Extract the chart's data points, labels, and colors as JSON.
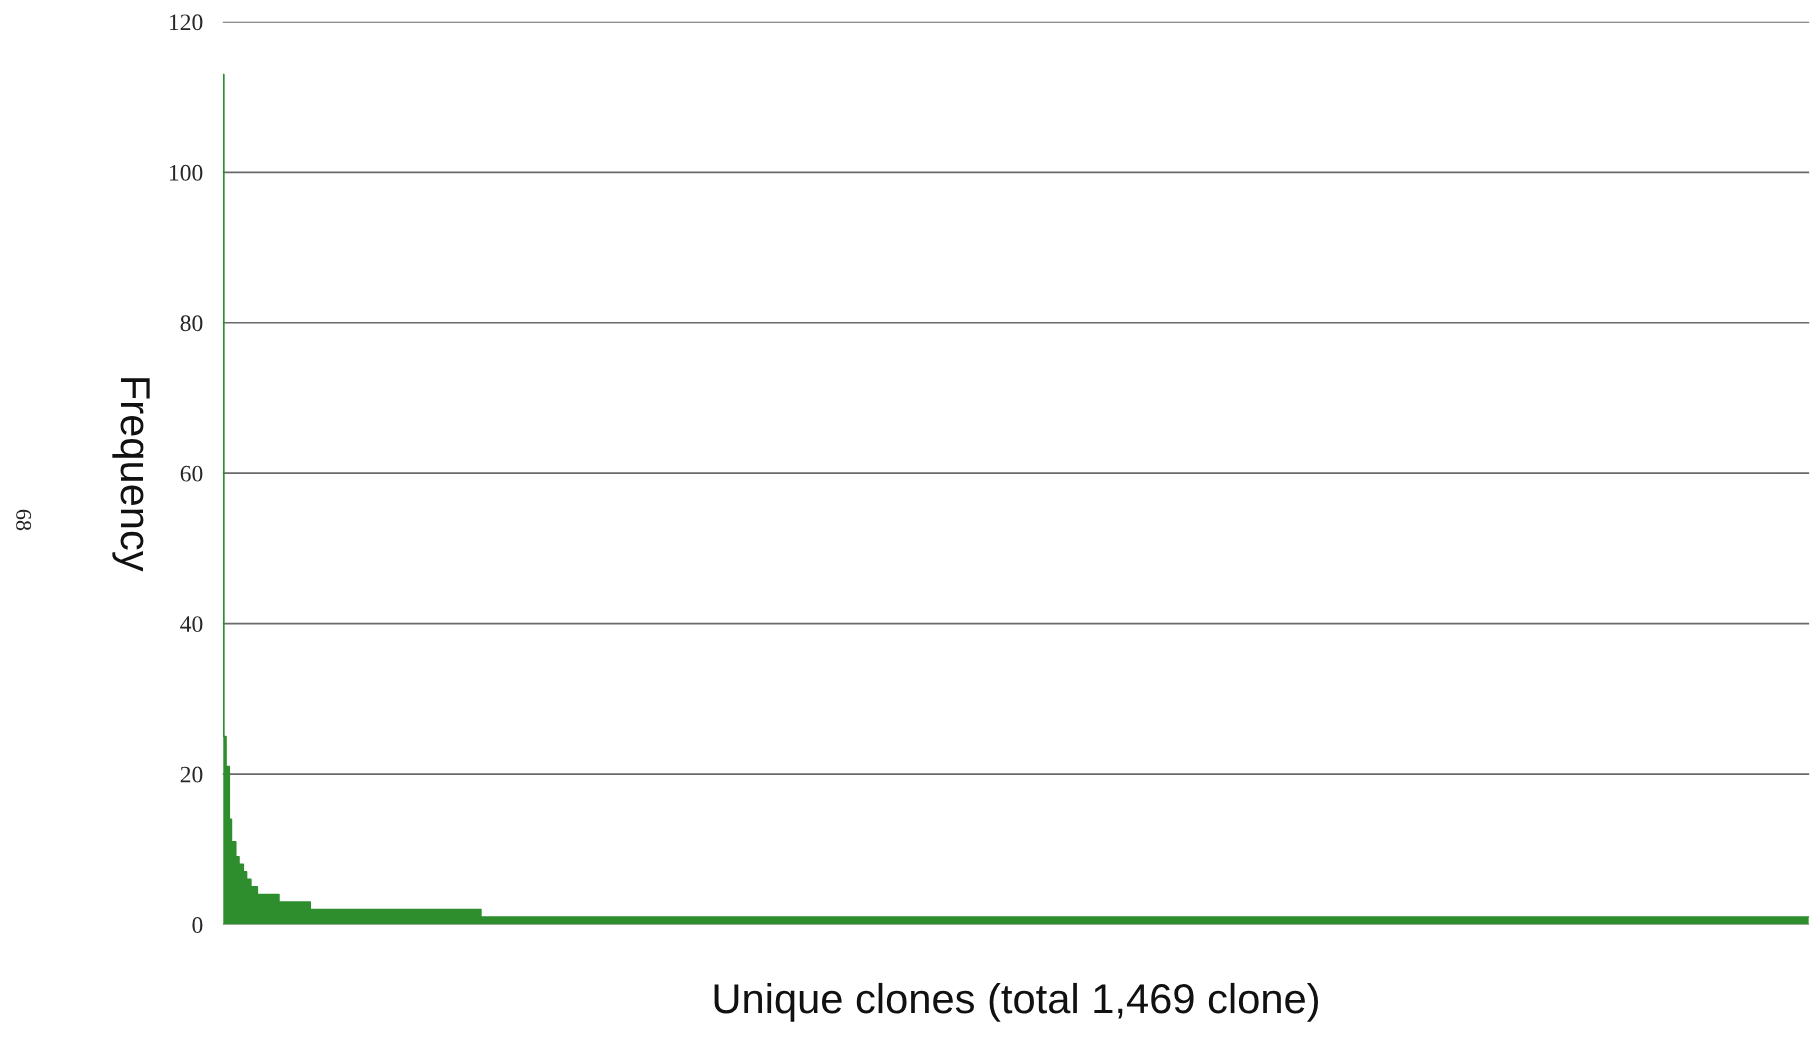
{
  "chart_data": {
    "type": "area",
    "xlabel": "Unique clones (total 1,469 clone)",
    "ylabel": "Frequency",
    "annotations": [
      "68"
    ],
    "color": "#2e8e2e",
    "ylim": [
      0,
      120
    ],
    "yticks": [
      0,
      20,
      40,
      60,
      80,
      100,
      120
    ],
    "grid": "y",
    "tick_labels": "y",
    "categories": [
      null,
      null,
      null,
      null,
      null,
      null,
      null,
      null,
      null,
      null,
      null,
      null,
      null,
      null,
      null,
      null,
      null,
      null,
      null,
      null,
      null,
      null,
      null,
      null,
      null,
      null,
      null,
      null,
      null,
      null,
      null,
      null,
      null,
      null,
      null,
      null,
      null,
      null,
      null,
      null,
      null,
      null,
      null,
      null,
      null,
      null,
      null,
      null,
      null,
      null,
      null,
      null,
      null,
      null,
      null,
      null,
      null,
      null,
      null,
      null,
      null,
      null,
      null,
      null,
      null,
      null,
      null,
      null,
      null,
      null,
      null,
      null,
      null,
      null,
      null,
      null,
      null,
      null,
      null,
      null,
      null,
      null,
      null,
      null,
      null,
      null,
      null,
      null,
      null,
      null,
      null,
      null,
      null,
      null,
      null,
      null,
      null,
      null,
      null,
      null,
      null,
      null,
      null,
      null,
      null,
      null,
      null,
      null,
      null,
      null,
      null,
      null,
      null,
      null,
      null,
      null,
      null,
      null,
      null,
      null,
      null,
      null,
      null,
      null,
      null,
      null,
      null,
      null,
      null,
      null,
      null,
      null,
      null,
      null,
      null,
      null,
      null,
      null,
      null,
      null,
      null,
      null,
      null,
      null,
      null,
      null,
      null,
      null,
      null,
      null,
      null,
      null,
      null,
      null,
      null,
      null,
      null,
      null,
      null,
      null,
      null,
      null,
      null,
      null,
      null,
      null,
      null,
      null,
      null,
      null,
      null,
      null,
      null,
      null,
      null,
      null,
      null,
      null,
      null,
      null,
      null,
      null,
      null,
      null,
      null,
      null,
      null,
      null,
      null,
      null,
      null,
      null,
      null,
      null,
      null,
      null,
      null,
      null,
      null,
      null,
      null,
      null,
      null,
      null,
      null,
      null,
      null,
      null,
      null,
      null,
      null,
      null,
      null,
      null,
      null,
      null,
      null,
      null,
      null,
      null,
      null,
      null,
      null,
      null,
      null,
      null,
      null,
      null,
      null,
      null,
      null,
      null,
      null,
      null,
      null,
      null,
      null,
      null,
      null,
      null,
      null,
      null,
      null,
      null,
      null,
      null,
      null,
      null,
      null,
      null,
      null,
      null,
      null,
      null,
      null,
      null,
      null,
      null,
      null,
      null,
      null,
      null,
      null,
      null,
      null,
      null,
      null,
      null,
      null,
      null,
      null,
      null,
      null,
      null,
      null,
      null,
      null,
      null,
      null,
      null,
      null,
      null,
      null,
      null,
      null,
      null,
      null,
      null,
      null,
      null,
      null,
      null,
      null,
      null,
      null,
      null,
      null,
      null,
      null,
      null,
      null,
      null,
      null,
      null,
      null,
      null,
      null,
      null,
      null,
      null,
      null,
      null,
      null,
      null,
      null,
      null,
      null,
      null,
      null,
      null,
      null,
      null,
      null,
      null,
      null,
      null,
      null,
      null,
      null,
      null,
      null,
      null,
      null,
      null,
      null,
      null,
      null,
      null,
      null,
      null,
      null,
      null,
      null,
      null,
      null,
      null,
      null,
      null,
      null,
      null,
      null,
      null,
      null,
      null,
      null,
      null,
      null,
      null,
      null,
      null,
      null,
      null,
      null,
      null,
      null,
      null,
      null,
      null,
      null,
      null,
      null,
      null,
      null,
      null,
      null,
      null,
      null,
      null,
      null,
      null,
      null,
      null,
      null,
      null,
      null,
      null,
      null,
      null,
      null,
      null,
      null,
      null,
      null,
      null,
      null,
      null,
      null,
      null,
      null,
      null,
      null,
      null,
      null,
      null,
      null,
      null,
      null,
      null,
      null,
      null,
      null,
      null,
      null,
      null,
      null,
      null,
      null,
      null,
      null,
      null,
      null,
      null,
      null,
      null,
      null,
      null,
      null,
      null,
      null,
      null,
      null,
      null,
      null,
      null,
      null,
      null,
      null,
      null,
      null,
      null,
      null,
      null,
      null,
      null,
      null,
      null,
      null,
      null,
      null,
      null,
      null,
      null,
      null,
      null,
      null,
      null,
      null,
      null,
      null,
      null,
      null,
      null,
      null,
      null,
      null,
      null,
      null,
      null,
      null,
      null,
      null,
      null,
      null,
      null,
      null,
      null,
      null,
      null,
      null,
      null,
      null,
      null,
      null,
      null,
      null,
      null,
      null,
      null,
      null,
      null,
      null,
      null,
      null,
      null,
      null,
      null,
      null,
      null,
      null,
      null,
      null,
      null,
      null,
      null,
      null,
      null,
      null,
      null,
      null,
      null,
      null,
      null,
      null,
      null,
      null,
      null,
      null,
      null,
      null,
      null,
      null,
      null,
      null,
      null,
      null,
      null,
      null,
      null,
      null,
      null,
      null,
      null,
      null,
      null,
      null,
      null,
      null,
      null,
      null,
      null,
      null,
      null,
      null,
      null,
      null,
      null,
      null,
      null,
      null,
      null,
      null,
      null,
      null,
      null,
      null,
      null,
      null,
      null,
      null,
      null,
      null,
      null,
      null,
      null,
      null,
      null,
      null,
      null,
      null,
      null,
      null,
      null,
      null,
      null,
      null,
      null,
      null,
      null,
      null,
      null,
      null,
      null,
      null,
      null,
      null,
      null,
      null,
      null,
      null,
      null,
      null,
      null,
      null,
      null,
      null,
      null,
      null,
      null,
      null,
      null,
      null,
      null,
      null,
      null,
      null,
      null,
      null,
      null,
      null,
      null,
      null,
      null,
      null,
      null,
      null,
      null,
      null,
      null,
      null,
      null,
      null,
      null,
      null,
      null,
      null,
      null,
      null,
      null,
      null,
      null,
      null,
      null,
      null,
      null,
      null,
      null,
      null,
      null,
      null,
      null,
      null,
      null,
      null,
      null,
      null,
      null,
      null,
      null,
      null,
      null,
      null,
      null,
      null,
      null,
      null,
      null,
      null,
      null,
      null,
      null,
      null,
      null,
      null,
      null,
      null,
      null,
      null,
      null,
      null,
      null,
      null,
      null,
      null,
      null,
      null,
      null,
      null,
      null,
      null,
      null,
      null,
      null,
      null,
      null,
      null,
      null,
      null,
      null,
      null,
      null,
      null,
      null,
      null,
      null,
      null,
      null,
      null,
      null,
      null,
      null,
      null,
      null,
      null,
      null,
      null,
      null,
      null,
      null,
      null,
      null,
      null,
      null,
      null,
      null,
      null,
      null,
      null,
      null,
      null,
      null,
      null,
      null,
      null,
      null,
      null,
      null,
      null,
      null,
      null,
      null,
      null,
      null,
      null,
      null,
      null,
      null,
      null,
      null,
      null,
      null,
      null,
      null,
      null,
      null,
      null,
      null,
      null,
      null,
      null,
      null,
      null,
      null,
      null,
      null,
      null,
      null,
      null,
      null,
      null,
      null,
      null,
      null,
      null,
      null,
      null,
      null,
      null,
      null,
      null,
      null,
      null,
      null,
      null,
      null,
      null,
      null,
      null,
      null,
      null,
      null,
      null,
      null,
      null,
      null,
      null,
      null,
      null,
      null,
      null,
      null,
      null,
      null,
      null,
      null,
      null,
      null,
      null,
      null,
      null,
      null,
      null,
      null,
      null,
      null,
      null,
      null,
      null,
      null,
      null,
      null,
      null,
      null,
      null,
      null,
      null,
      null,
      null,
      null,
      null,
      null,
      null,
      null,
      null,
      null,
      null,
      null,
      null,
      null,
      null,
      null,
      null,
      null,
      null,
      null,
      null,
      null,
      null,
      null,
      null,
      null,
      null,
      null,
      null,
      null,
      null,
      null,
      null,
      null,
      null,
      null,
      null,
      null,
      null,
      null,
      null,
      null,
      null,
      null,
      null,
      null,
      null,
      null,
      null,
      null,
      null,
      null,
      null,
      null,
      null,
      null,
      null,
      null,
      null,
      null,
      null,
      null,
      null,
      null,
      null,
      null,
      null,
      null,
      null,
      null,
      null,
      null,
      null,
      null,
      null,
      null,
      null,
      null,
      null,
      null,
      null,
      null,
      null,
      null,
      null,
      null,
      null,
      null,
      null,
      null,
      null,
      null,
      null,
      null,
      null,
      null,
      null,
      null,
      null,
      null,
      null,
      null,
      null,
      null,
      null,
      null,
      null,
      null,
      null,
      null,
      null,
      null,
      null,
      null,
      null,
      null,
      null,
      null,
      null,
      null,
      null,
      null,
      null,
      null,
      null,
      null,
      null,
      null,
      null,
      null,
      null,
      null,
      null,
      null,
      null,
      null,
      null,
      null,
      null,
      null,
      null,
      null,
      null,
      null,
      null,
      null,
      null,
      null,
      null,
      null,
      null,
      null,
      null,
      null,
      null,
      null,
      null,
      null,
      null,
      null,
      null,
      null,
      null,
      null,
      null,
      null,
      null,
      null,
      null,
      null,
      null,
      null,
      null,
      null,
      null,
      null,
      null,
      null,
      null,
      null,
      null,
      null,
      null,
      null,
      null,
      null,
      null,
      null,
      null,
      null,
      null,
      null,
      null,
      null,
      null,
      null,
      null,
      null,
      null,
      null,
      null,
      null,
      null,
      null,
      null,
      null,
      null,
      null,
      null,
      null,
      null,
      null,
      null,
      null,
      null,
      null,
      null,
      null,
      null,
      null,
      null,
      null,
      null,
      null,
      null,
      null,
      null,
      null,
      null,
      null,
      null,
      null,
      null,
      null,
      null,
      null,
      null,
      null,
      null,
      null,
      null,
      null,
      null,
      null,
      null,
      null,
      null,
      null,
      null,
      null,
      null,
      null,
      null,
      null,
      null,
      null,
      null,
      null,
      null,
      null,
      null,
      null,
      null,
      null,
      null,
      null,
      null,
      null,
      null,
      null,
      null,
      null,
      null,
      null,
      null,
      null,
      null,
      null,
      null,
      null,
      null,
      null,
      null,
      null,
      null,
      null,
      null,
      null,
      null,
      null,
      null,
      null,
      null,
      null,
      null,
      null,
      null,
      null,
      null,
      null,
      null,
      null,
      null,
      null,
      null,
      null,
      null,
      null,
      null,
      null,
      null,
      null,
      null,
      null,
      null,
      null,
      null,
      null,
      null,
      null,
      null,
      null,
      null,
      null,
      null,
      null,
      null,
      null,
      null,
      null,
      null,
      null,
      null,
      null,
      null,
      null,
      null,
      null,
      null,
      null,
      null,
      null,
      null,
      null,
      null,
      null,
      null,
      null,
      null,
      null,
      null,
      null,
      null,
      null,
      null,
      null,
      null,
      null,
      null,
      null,
      null,
      null,
      null,
      null,
      null,
      null,
      null,
      null,
      null,
      null,
      null,
      null,
      null,
      null,
      null,
      null,
      null,
      null,
      null,
      null,
      null,
      null,
      null,
      null,
      null,
      null,
      null,
      null,
      null,
      null,
      null,
      null,
      null,
      null,
      null,
      null,
      null,
      null,
      null,
      null,
      null,
      null,
      null,
      null,
      null,
      null,
      null,
      null,
      null,
      null,
      null,
      null,
      null,
      null,
      null,
      null,
      null,
      null,
      null,
      null,
      null,
      null,
      null,
      null,
      null,
      null,
      null,
      null,
      null,
      null,
      null,
      null,
      null,
      null,
      null,
      null,
      null,
      null,
      null,
      null,
      null,
      null,
      null,
      null,
      null,
      null,
      null,
      null,
      null,
      null,
      null,
      null,
      null,
      null,
      null,
      null,
      null,
      null,
      null,
      null,
      null,
      null,
      null,
      null,
      null,
      null,
      null,
      null,
      null,
      null,
      null,
      null,
      null,
      null,
      null,
      null,
      null,
      null,
      null,
      null,
      null,
      null,
      null,
      null,
      null,
      null,
      null,
      null,
      null,
      null,
      null,
      null,
      null,
      null,
      null,
      null,
      null,
      null,
      null,
      null,
      null,
      null,
      null,
      null,
      null,
      null,
      null,
      null,
      null,
      null,
      null,
      null,
      null,
      null,
      null,
      null,
      null,
      null,
      null,
      null,
      null,
      null,
      null,
      null,
      null,
      null,
      null,
      null,
      null,
      null,
      null,
      null,
      null,
      null,
      null,
      null,
      null,
      null,
      null,
      null,
      null,
      null,
      null,
      null,
      null,
      null,
      null,
      null,
      null,
      null,
      null,
      null,
      null,
      null,
      null,
      null,
      null,
      null,
      null,
      null,
      null,
      null,
      null,
      null,
      null,
      null,
      null,
      null,
      null,
      null,
      null,
      null,
      null,
      null,
      null,
      null,
      null,
      null,
      null,
      null,
      null,
      null,
      null,
      null,
      null,
      null,
      null,
      null,
      null,
      null,
      null,
      null,
      null,
      null,
      null,
      null,
      null,
      null,
      null,
      null,
      null,
      null,
      null,
      null,
      null,
      null,
      null,
      null,
      null,
      null,
      null,
      null,
      null,
      null,
      null,
      null,
      null,
      null,
      null,
      null,
      null,
      null,
      null,
      null,
      null,
      null,
      null,
      null,
      null,
      null,
      null,
      null,
      null,
      null,
      null,
      null,
      null,
      null,
      null,
      null,
      null,
      null,
      null,
      null,
      null,
      null,
      null,
      null,
      null,
      null,
      null,
      null,
      null,
      null,
      null
    ],
    "values": [
      113,
      25,
      25,
      21,
      21,
      21,
      14,
      14,
      11,
      11,
      11,
      11,
      9,
      9,
      9,
      8,
      8,
      8,
      8,
      7,
      7,
      7,
      6,
      6,
      6,
      6,
      5,
      5,
      5,
      5,
      5,
      5,
      4,
      4,
      4,
      4,
      4,
      4,
      4,
      4,
      4,
      4,
      4,
      4,
      4,
      4,
      4,
      4,
      4,
      4,
      4,
      4,
      3,
      3,
      3,
      3,
      3,
      3,
      3,
      3,
      3,
      3,
      3,
      3,
      3,
      3,
      3,
      3,
      3,
      3,
      3,
      3,
      3,
      3,
      3,
      3,
      3,
      3,
      3,
      3,
      3,
      2,
      2,
      2,
      2,
      2,
      2,
      2,
      2,
      2,
      2,
      2,
      2,
      2,
      2,
      2,
      2,
      2,
      2,
      2,
      2,
      2,
      2,
      2,
      2,
      2,
      2,
      2,
      2,
      2,
      2,
      2,
      2,
      2,
      2,
      2,
      2,
      2,
      2,
      2,
      2,
      2,
      2,
      2,
      2,
      2,
      2,
      2,
      2,
      2,
      2,
      2,
      2,
      2,
      2,
      2,
      2,
      2,
      2,
      2,
      2,
      2,
      2,
      2,
      2,
      2,
      2,
      2,
      2,
      2,
      2,
      2,
      2,
      2,
      2,
      2,
      2,
      2,
      2,
      2,
      2,
      2,
      2,
      2,
      2,
      2,
      2,
      2,
      2,
      2,
      2,
      2,
      2,
      2,
      2,
      2,
      2,
      2,
      2,
      2,
      2,
      2,
      2,
      2,
      2,
      2,
      2,
      2,
      2,
      2,
      2,
      2,
      2,
      2,
      2,
      2,
      2,
      2,
      2,
      2,
      2,
      2,
      2,
      2,
      2,
      2,
      2,
      2,
      2,
      2,
      2,
      2,
      2,
      2,
      2,
      2,
      2,
      2,
      2,
      2,
      2,
      2,
      2,
      2,
      2,
      2,
      2,
      2,
      2,
      2,
      2,
      2,
      2,
      2,
      2,
      2,
      2,
      2,
      2,
      1,
      1,
      1,
      1,
      1,
      1,
      1,
      1,
      1,
      1,
      1,
      1,
      1,
      1,
      1,
      1,
      1,
      1,
      1,
      1,
      1,
      1,
      1,
      1,
      1,
      1,
      1,
      1,
      1,
      1,
      1,
      1,
      1,
      1,
      1,
      1,
      1,
      1,
      1,
      1,
      1,
      1,
      1,
      1,
      1,
      1,
      1,
      1,
      1,
      1,
      1,
      1,
      1,
      1,
      1,
      1,
      1,
      1,
      1,
      1,
      1,
      1,
      1,
      1,
      1,
      1,
      1,
      1,
      1,
      1,
      1,
      1,
      1,
      1,
      1,
      1,
      1,
      1,
      1,
      1,
      1,
      1,
      1,
      1,
      1,
      1,
      1,
      1,
      1,
      1,
      1,
      1,
      1,
      1,
      1,
      1,
      1,
      1,
      1,
      1,
      1,
      1,
      1,
      1,
      1,
      1,
      1,
      1,
      1,
      1,
      1,
      1,
      1,
      1,
      1,
      1,
      1,
      1,
      1,
      1,
      1,
      1,
      1,
      1,
      1,
      1,
      1,
      1,
      1,
      1,
      1,
      1,
      1,
      1,
      1,
      1,
      1,
      1,
      1,
      1,
      1,
      1,
      1,
      1,
      1,
      1,
      1,
      1,
      1,
      1,
      1,
      1,
      1,
      1,
      1,
      1,
      1,
      1,
      1,
      1,
      1,
      1,
      1,
      1,
      1,
      1,
      1,
      1,
      1,
      1,
      1,
      1,
      1,
      1,
      1,
      1,
      1,
      1,
      1,
      1,
      1,
      1,
      1,
      1,
      1,
      1,
      1,
      1,
      1,
      1,
      1,
      1,
      1,
      1,
      1,
      1,
      1,
      1,
      1,
      1,
      1,
      1,
      1,
      1,
      1,
      1,
      1,
      1,
      1,
      1,
      1,
      1,
      1,
      1,
      1,
      1,
      1,
      1,
      1,
      1,
      1,
      1,
      1,
      1,
      1,
      1,
      1,
      1,
      1,
      1,
      1,
      1,
      1,
      1,
      1,
      1,
      1,
      1,
      1,
      1,
      1,
      1,
      1,
      1,
      1,
      1,
      1,
      1,
      1,
      1,
      1,
      1,
      1,
      1,
      1,
      1,
      1,
      1,
      1,
      1,
      1,
      1,
      1,
      1,
      1,
      1,
      1,
      1,
      1,
      1,
      1,
      1,
      1,
      1,
      1,
      1,
      1,
      1,
      1,
      1,
      1,
      1,
      1,
      1,
      1,
      1,
      1,
      1,
      1,
      1,
      1,
      1,
      1,
      1,
      1,
      1,
      1,
      1,
      1,
      1,
      1,
      1,
      1,
      1,
      1,
      1,
      1,
      1,
      1,
      1,
      1,
      1,
      1,
      1,
      1,
      1,
      1,
      1,
      1,
      1,
      1,
      1,
      1,
      1,
      1,
      1,
      1,
      1,
      1,
      1,
      1,
      1,
      1,
      1,
      1,
      1,
      1,
      1,
      1,
      1,
      1,
      1,
      1,
      1,
      1,
      1,
      1,
      1,
      1,
      1,
      1,
      1,
      1,
      1,
      1,
      1,
      1,
      1,
      1,
      1,
      1,
      1,
      1,
      1,
      1,
      1,
      1,
      1,
      1,
      1,
      1,
      1,
      1,
      1,
      1,
      1,
      1,
      1,
      1,
      1,
      1,
      1,
      1,
      1,
      1,
      1,
      1,
      1,
      1,
      1,
      1,
      1,
      1,
      1,
      1,
      1,
      1,
      1,
      1,
      1,
      1,
      1,
      1,
      1,
      1,
      1,
      1,
      1,
      1,
      1,
      1,
      1,
      1,
      1,
      1,
      1,
      1,
      1,
      1,
      1,
      1,
      1,
      1,
      1,
      1,
      1,
      1,
      1,
      1,
      1,
      1,
      1,
      1,
      1,
      1,
      1,
      1,
      1,
      1,
      1,
      1,
      1,
      1,
      1,
      1,
      1,
      1,
      1,
      1,
      1,
      1,
      1,
      1,
      1,
      1,
      1,
      1,
      1,
      1,
      1,
      1,
      1,
      1,
      1,
      1,
      1,
      1,
      1,
      1,
      1,
      1,
      1,
      1,
      1,
      1,
      1,
      1,
      1,
      1,
      1,
      1,
      1,
      1,
      1,
      1,
      1,
      1,
      1,
      1,
      1,
      1,
      1,
      1,
      1,
      1,
      1,
      1,
      1,
      1,
      1,
      1,
      1,
      1,
      1,
      1,
      1,
      1,
      1,
      1,
      1,
      1,
      1,
      1,
      1,
      1,
      1,
      1,
      1,
      1,
      1,
      1,
      1,
      1,
      1,
      1,
      1,
      1,
      1,
      1,
      1,
      1,
      1,
      1,
      1,
      1,
      1,
      1,
      1,
      1,
      1,
      1,
      1,
      1,
      1,
      1,
      1,
      1,
      1,
      1,
      1,
      1,
      1,
      1,
      1,
      1,
      1,
      1,
      1,
      1,
      1,
      1,
      1,
      1,
      1,
      1,
      1,
      1,
      1,
      1,
      1,
      1,
      1,
      1,
      1,
      1,
      1,
      1,
      1,
      1,
      1,
      1,
      1,
      1,
      1,
      1,
      1,
      1,
      1,
      1,
      1,
      1,
      1,
      1,
      1,
      1,
      1,
      1,
      1,
      1,
      1,
      1,
      1,
      1,
      1,
      1,
      1,
      1,
      1,
      1,
      1,
      1,
      1,
      1,
      1,
      1,
      1,
      1,
      1,
      1,
      1,
      1,
      1,
      1,
      1,
      1,
      1,
      1,
      1,
      1,
      1,
      1,
      1,
      1,
      1,
      1,
      1,
      1,
      1,
      1,
      1,
      1,
      1,
      1,
      1,
      1,
      1,
      1,
      1,
      1,
      1,
      1,
      1,
      1,
      1,
      1,
      1,
      1,
      1,
      1,
      1,
      1,
      1,
      1,
      1,
      1,
      1,
      1,
      1,
      1,
      1,
      1,
      1,
      1,
      1,
      1,
      1,
      1,
      1,
      1,
      1,
      1,
      1,
      1,
      1,
      1,
      1,
      1,
      1,
      1,
      1,
      1,
      1,
      1,
      1,
      1,
      1,
      1,
      1,
      1,
      1,
      1,
      1,
      1,
      1,
      1,
      1,
      1,
      1,
      1,
      1,
      1,
      1,
      1,
      1,
      1,
      1,
      1,
      1,
      1,
      1,
      1,
      1,
      1,
      1,
      1,
      1,
      1,
      1,
      1,
      1,
      1,
      1,
      1,
      1,
      1,
      1,
      1,
      1,
      1,
      1,
      1,
      1,
      1,
      1,
      1,
      1,
      1,
      1,
      1,
      1,
      1,
      1,
      1,
      1,
      1,
      1,
      1,
      1,
      1,
      1,
      1,
      1,
      1,
      1,
      1,
      1,
      1,
      1,
      1,
      1,
      1,
      1,
      1,
      1,
      1,
      1,
      1,
      1,
      1,
      1,
      1,
      1,
      1,
      1,
      1,
      1,
      1,
      1,
      1,
      1,
      1,
      1,
      1,
      1,
      1,
      1,
      1,
      1,
      1,
      1,
      1,
      1,
      1,
      1,
      1,
      1,
      1,
      1,
      1,
      1,
      1,
      1,
      1,
      1,
      1,
      1,
      1,
      1,
      1,
      1,
      1,
      1,
      1,
      1,
      1,
      1,
      1,
      1,
      1,
      1,
      1,
      1,
      1,
      1,
      1,
      1,
      1,
      1,
      1,
      1,
      1,
      1,
      1,
      1,
      1,
      1,
      1,
      1,
      1,
      1,
      1,
      1,
      1,
      1,
      1,
      1,
      1,
      1,
      1,
      1,
      1,
      1,
      1,
      1,
      1,
      1,
      1,
      1,
      1,
      1,
      1,
      1,
      1,
      1,
      1,
      1,
      1,
      1,
      1,
      1,
      1,
      1,
      1,
      1,
      1,
      1,
      1,
      1,
      1,
      1,
      1,
      1,
      1,
      1,
      1,
      1,
      1,
      1,
      1,
      1,
      1,
      1,
      1,
      1,
      1,
      1,
      1,
      1,
      1,
      1,
      1,
      1,
      1,
      1,
      1,
      1,
      1,
      1,
      1,
      1,
      1,
      1,
      1,
      1,
      1,
      1,
      1,
      1,
      1,
      1,
      1,
      1,
      1,
      1,
      1,
      1,
      1,
      1,
      1,
      1,
      1,
      1,
      1,
      1,
      1,
      1,
      1,
      1,
      1,
      1,
      1,
      1,
      1,
      1,
      1,
      1,
      1,
      1,
      1,
      1,
      1,
      1,
      1,
      1,
      1,
      1,
      1,
      1,
      1,
      1,
      1,
      1,
      1,
      1,
      1,
      1,
      1,
      1,
      1,
      1,
      1,
      1,
      1,
      1,
      1,
      1,
      1,
      1,
      1,
      1,
      1,
      1,
      1,
      1,
      1,
      1,
      1,
      1,
      1,
      1,
      1,
      1,
      1,
      1,
      1,
      1,
      1,
      1,
      1,
      1,
      1,
      1,
      1,
      1,
      1,
      1,
      1,
      1,
      1,
      1,
      1,
      1,
      1,
      1,
      1,
      1,
      1,
      1,
      1,
      1,
      1,
      1,
      1,
      1,
      1,
      1,
      1,
      1,
      1,
      1,
      1,
      1,
      1,
      1,
      1,
      1,
      1,
      1,
      1,
      1,
      1,
      1,
      1,
      1,
      1,
      1,
      1,
      1,
      1,
      1,
      1,
      1,
      1,
      1,
      1,
      1,
      1,
      1,
      1,
      1,
      1,
      1,
      1,
      1,
      1,
      1,
      1,
      1,
      1,
      1,
      1,
      1,
      1,
      1,
      1,
      1,
      1,
      1,
      1,
      1,
      1,
      1,
      1,
      1,
      1,
      1,
      1,
      1,
      1,
      1,
      1,
      1,
      1,
      1,
      1,
      1,
      1,
      1,
      1,
      1,
      1,
      1,
      1,
      1,
      1,
      1,
      1,
      1,
      1,
      1,
      1,
      1,
      1,
      1,
      1,
      1,
      1,
      1,
      1,
      1,
      1,
      1,
      1,
      1,
      1,
      1,
      1,
      1,
      1,
      1,
      1,
      1,
      1,
      1,
      1,
      1,
      1,
      1,
      1,
      1,
      1,
      1,
      1,
      1,
      1,
      1,
      1,
      1,
      1,
      1,
      1,
      1,
      1,
      1,
      1,
      1,
      1,
      1,
      1,
      1,
      1,
      1,
      1,
      1,
      1,
      1,
      1,
      1,
      1,
      1,
      1,
      1,
      1,
      1,
      1,
      1,
      1,
      1,
      1,
      1,
      1,
      1,
      1,
      1,
      1,
      1,
      1,
      1,
      1,
      1,
      1,
      1,
      1,
      1,
      1,
      1,
      1,
      1,
      1,
      1,
      1,
      1,
      1,
      1,
      1,
      1,
      1,
      1,
      1,
      1,
      1,
      1,
      1,
      1,
      1,
      1,
      1,
      1,
      1,
      1
    ]
  }
}
